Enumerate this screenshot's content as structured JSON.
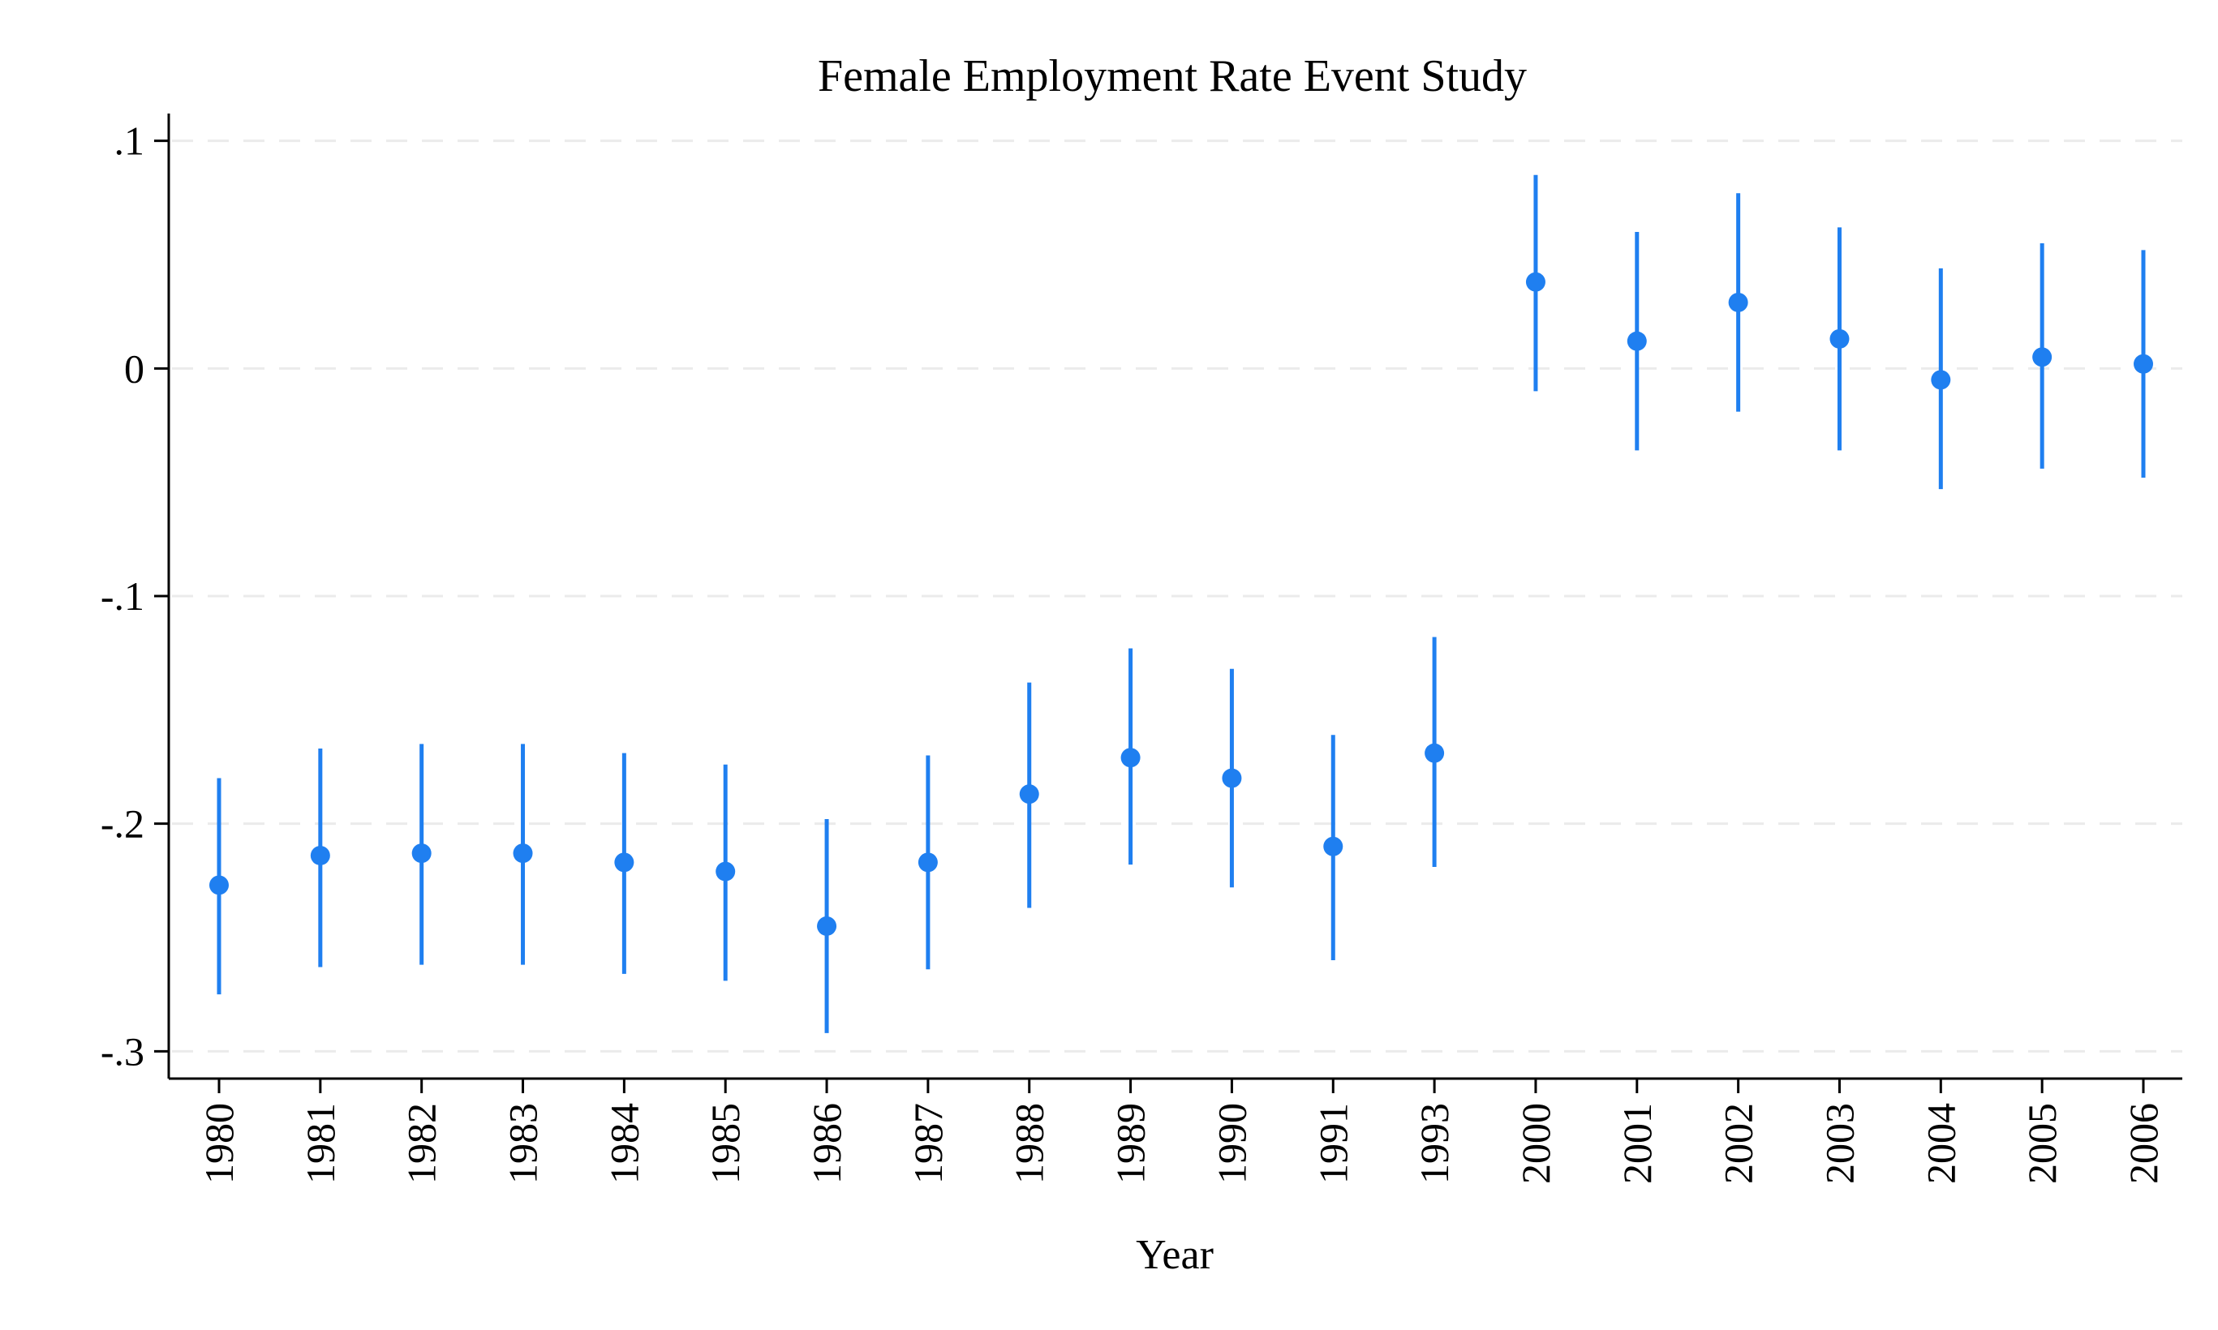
{
  "chart_data": {
    "type": "scatter",
    "title": "Female Employment Rate Event Study",
    "xlabel": "Year",
    "ylabel": "",
    "categories": [
      "1980",
      "1981",
      "1982",
      "1983",
      "1984",
      "1985",
      "1986",
      "1987",
      "1988",
      "1989",
      "1990",
      "1991",
      "1993",
      "2000",
      "2001",
      "2002",
      "2003",
      "2004",
      "2005",
      "2006"
    ],
    "series": [
      {
        "estimate": [
          -0.227,
          -0.214,
          -0.213,
          -0.213,
          -0.217,
          -0.221,
          -0.245,
          -0.217,
          -0.187,
          -0.171,
          -0.18,
          -0.21,
          -0.169,
          0.038,
          0.012,
          0.029,
          0.013,
          -0.005,
          0.005,
          0.002
        ],
        "ci_low": [
          -0.275,
          -0.263,
          -0.262,
          -0.262,
          -0.266,
          -0.269,
          -0.292,
          -0.264,
          -0.237,
          -0.218,
          -0.228,
          -0.26,
          -0.219,
          -0.01,
          -0.036,
          -0.019,
          -0.036,
          -0.053,
          -0.044,
          -0.048
        ],
        "ci_high": [
          -0.18,
          -0.167,
          -0.165,
          -0.165,
          -0.169,
          -0.174,
          -0.198,
          -0.17,
          -0.138,
          -0.123,
          -0.132,
          -0.161,
          -0.118,
          0.085,
          0.06,
          0.077,
          0.062,
          0.044,
          0.055,
          0.052
        ],
        "color": "#1f7ff0"
      }
    ],
    "yticks": [
      {
        "value": 0.1,
        "label": ".1"
      },
      {
        "value": 0,
        "label": "0"
      },
      {
        "value": -0.1,
        "label": "-.1"
      },
      {
        "value": -0.2,
        "label": "-.2"
      },
      {
        "value": -0.3,
        "label": "-.3"
      }
    ],
    "ylim": [
      -0.312,
      0.112
    ],
    "grid": true,
    "legend": "none"
  }
}
